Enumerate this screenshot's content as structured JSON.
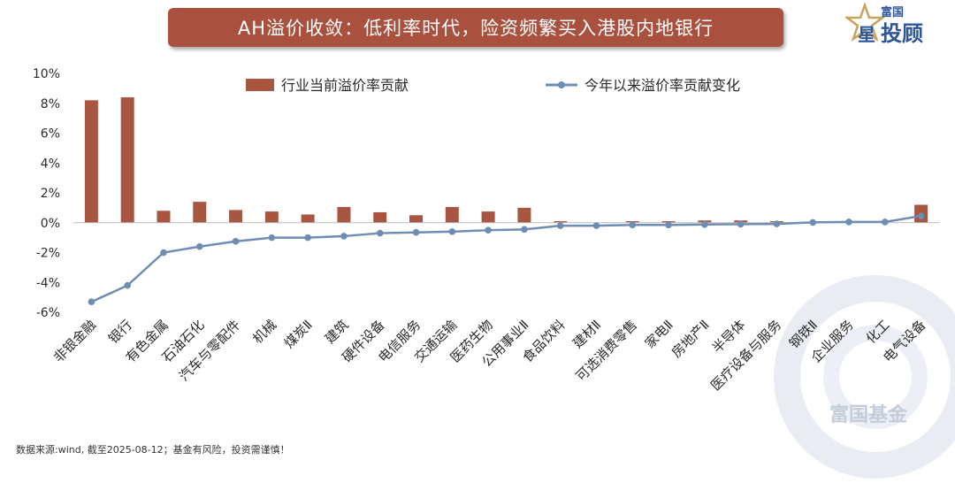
{
  "header": {
    "title": "AH溢价收敛：低利率时代，险资频繁买入港股内地银行",
    "brand_top": "富国",
    "brand_star": "星",
    "brand_main": "投顾"
  },
  "watermark": {
    "text": "富国基金"
  },
  "footer": {
    "source": "数据来源:wind, 截至2025-08-12；基金有风险，投资需谨慎！"
  },
  "colors": {
    "bar": "#a85541",
    "line": "#6e8db3",
    "title_bg": "#a9503e",
    "brand_gold": "#c9a25c",
    "brand_blue": "#2f5597"
  },
  "chart_data": {
    "type": "bar",
    "categories": [
      "非银金融",
      "银行",
      "有色金属",
      "石油石化",
      "汽车与零配件",
      "机械",
      "煤炭Ⅱ",
      "建筑",
      "硬件设备",
      "电信服务",
      "交通运输",
      "医药生物",
      "公用事业Ⅱ",
      "食品饮料",
      "建材Ⅱ",
      "可选消费零售",
      "家电Ⅱ",
      "房地产Ⅱ",
      "半导体",
      "医疗设备与服务",
      "钢铁Ⅱ",
      "企业服务",
      "化工",
      "电气设备"
    ],
    "series": [
      {
        "name": "行业当前溢价率贡献",
        "type": "bar",
        "values": [
          8.2,
          8.4,
          0.8,
          1.4,
          0.85,
          0.75,
          0.55,
          1.05,
          0.7,
          0.5,
          1.05,
          0.75,
          1.0,
          0.1,
          0.0,
          0.1,
          0.1,
          0.15,
          0.15,
          0.1,
          0.0,
          0.0,
          0.0,
          1.2
        ]
      },
      {
        "name": "今年以来溢价率贡献变化",
        "type": "line",
        "values": [
          -5.3,
          -4.2,
          -2.0,
          -1.6,
          -1.25,
          -1.0,
          -1.0,
          -0.9,
          -0.7,
          -0.65,
          -0.6,
          -0.5,
          -0.45,
          -0.2,
          -0.2,
          -0.15,
          -0.15,
          -0.12,
          -0.1,
          -0.08,
          0.02,
          0.05,
          0.05,
          0.45
        ]
      }
    ],
    "ylim": [
      -6,
      10
    ],
    "yticks": [
      -6,
      -4,
      -2,
      0,
      2,
      4,
      6,
      8,
      10
    ],
    "ytick_labels": [
      "-6%",
      "-4%",
      "-2%",
      "0%",
      "2%",
      "4%",
      "6%",
      "8%",
      "10%"
    ],
    "legend_position": "top",
    "grid": false
  }
}
